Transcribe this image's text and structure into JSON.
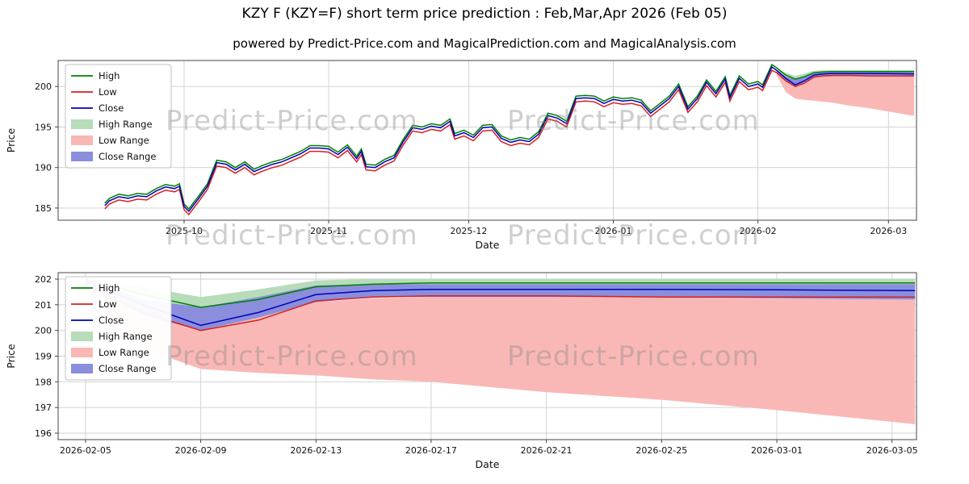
{
  "page": {
    "title": "KZY F (KZY=F) short term price prediction : Feb,Mar,Apr 2026 (Feb 05)",
    "subtitle": "powered by Predict-Price.com and MagicalPrediction.com and MagicalAnalysis.com",
    "watermark": "Predict-Price.com"
  },
  "colors": {
    "high": "#008000",
    "low": "#d62020",
    "close": "#0000b8",
    "high_range": "#b7dcb9",
    "low_range": "#f9b8b6",
    "close_range": "#8a8edd",
    "grid": "#cfcfcf",
    "frame": "#444444"
  },
  "chart_data": [
    {
      "type": "line",
      "title": "",
      "xlabel": "Date",
      "ylabel": "Price",
      "xlim": [
        0,
        184
      ],
      "ylim": [
        183.5,
        203.2
      ],
      "grid": true,
      "legend_position": "upper left",
      "x_ticks": [
        {
          "v": 27,
          "label": "2025-10"
        },
        {
          "v": 58,
          "label": "2025-11"
        },
        {
          "v": 88,
          "label": "2025-12"
        },
        {
          "v": 119,
          "label": "2026-01"
        },
        {
          "v": 150,
          "label": "2026-02"
        },
        {
          "v": 178,
          "label": "2026-03"
        }
      ],
      "y_ticks": [
        185,
        190,
        195,
        200
      ],
      "legend": [
        {
          "label": "High",
          "color": "high",
          "swatch": "line"
        },
        {
          "label": "Low",
          "color": "low",
          "swatch": "line"
        },
        {
          "label": "Close",
          "color": "close",
          "swatch": "line"
        },
        {
          "label": "High Range",
          "color": "high_range",
          "swatch": "patch"
        },
        {
          "label": "Low Range",
          "color": "low_range",
          "swatch": "patch"
        },
        {
          "label": "Close Range",
          "color": "close_range",
          "swatch": "patch"
        }
      ],
      "bands": [
        {
          "name": "Low Range",
          "color": "low_range",
          "x": [
            154,
            156,
            158,
            160,
            162,
            164,
            166,
            170,
            174,
            178,
            183.5
          ],
          "top": [
            201.7,
            200.7,
            200.0,
            200.5,
            201.1,
            201.25,
            201.3,
            201.3,
            201.3,
            201.25,
            201.2
          ],
          "bottom": [
            201.4,
            199.3,
            198.5,
            198.35,
            198.25,
            198.1,
            198.0,
            197.6,
            197.3,
            196.9,
            196.35
          ]
        },
        {
          "name": "High Range",
          "color": "high_range",
          "x": [
            154,
            156,
            158,
            160,
            162,
            164,
            166,
            170,
            174,
            178,
            183.5
          ],
          "top": [
            202.05,
            201.7,
            201.3,
            201.6,
            201.95,
            202.0,
            202.0,
            202.0,
            202.0,
            202.0,
            202.0
          ],
          "bottom": [
            201.95,
            201.1,
            200.6,
            201.0,
            201.6,
            201.75,
            201.8,
            201.8,
            201.8,
            201.8,
            201.8
          ]
        },
        {
          "name": "Close Range",
          "color": "close_range",
          "x": [
            154,
            156,
            158,
            160,
            162,
            164,
            166,
            170,
            174,
            178,
            183.5
          ],
          "top": [
            202.0,
            201.2,
            200.9,
            201.3,
            201.75,
            201.8,
            201.8,
            201.8,
            201.8,
            201.8,
            201.8
          ],
          "bottom": [
            201.7,
            200.6,
            200.0,
            200.5,
            201.1,
            201.3,
            201.3,
            201.3,
            201.3,
            201.25,
            201.2
          ]
        }
      ],
      "series": [
        {
          "name": "High",
          "color": "high",
          "x": [
            10,
            11,
            13,
            15,
            17,
            19,
            21,
            23,
            25,
            26,
            27,
            28,
            30,
            32,
            34,
            36,
            38,
            40,
            42,
            44,
            46,
            48,
            50,
            52,
            54,
            56,
            58,
            60,
            62,
            64,
            65,
            66,
            68,
            70,
            72,
            74,
            76,
            78,
            80,
            82,
            84,
            85,
            87,
            89,
            91,
            93,
            95,
            97,
            99,
            101,
            103,
            105,
            107,
            109,
            111,
            113,
            115,
            117,
            119,
            121,
            123,
            125,
            127,
            129,
            131,
            133,
            135,
            137,
            139,
            141,
            143,
            144,
            146,
            148,
            150,
            151,
            153,
            154,
            156,
            158,
            160,
            162,
            164,
            166,
            170,
            174,
            178,
            183.5
          ],
          "y": [
            185.6,
            186.2,
            186.7,
            186.5,
            186.8,
            186.7,
            187.4,
            187.9,
            187.7,
            188.0,
            185.5,
            184.9,
            186.4,
            188.0,
            190.9,
            190.7,
            190.0,
            190.7,
            189.8,
            190.3,
            190.7,
            191.0,
            191.5,
            192.0,
            192.7,
            192.7,
            192.6,
            191.9,
            192.8,
            191.4,
            192.3,
            190.4,
            190.3,
            191.0,
            191.5,
            193.5,
            195.2,
            195.0,
            195.4,
            195.2,
            196.0,
            194.2,
            194.6,
            194.0,
            195.2,
            195.3,
            193.9,
            193.4,
            193.7,
            193.5,
            194.4,
            196.7,
            196.4,
            195.7,
            198.8,
            198.9,
            198.8,
            198.2,
            198.7,
            198.5,
            198.6,
            198.3,
            197.0,
            197.9,
            198.8,
            200.3,
            197.5,
            198.8,
            200.8,
            199.4,
            201.2,
            198.9,
            201.3,
            200.3,
            200.6,
            200.2,
            202.7,
            202.3,
            201.4,
            200.9,
            201.2,
            201.7,
            201.8,
            201.85,
            201.85,
            201.85,
            201.85,
            201.85
          ]
        },
        {
          "name": "Low",
          "color": "low",
          "x": [
            10,
            11,
            13,
            15,
            17,
            19,
            21,
            23,
            25,
            26,
            27,
            28,
            30,
            32,
            34,
            36,
            38,
            40,
            42,
            44,
            46,
            48,
            50,
            52,
            54,
            56,
            58,
            60,
            62,
            64,
            65,
            66,
            68,
            70,
            72,
            74,
            76,
            78,
            80,
            82,
            84,
            85,
            87,
            89,
            91,
            93,
            95,
            97,
            99,
            101,
            103,
            105,
            107,
            109,
            111,
            113,
            115,
            117,
            119,
            121,
            123,
            125,
            127,
            129,
            131,
            133,
            135,
            137,
            139,
            141,
            143,
            144,
            146,
            148,
            150,
            151,
            153,
            154,
            156,
            158,
            160,
            162,
            164,
            166,
            170,
            174,
            178,
            183.5
          ],
          "y": [
            184.9,
            185.5,
            186.0,
            185.8,
            186.1,
            186.0,
            186.7,
            187.2,
            187.0,
            187.3,
            184.8,
            184.2,
            185.7,
            187.3,
            190.2,
            190.0,
            189.3,
            190.0,
            189.1,
            189.6,
            190.0,
            190.3,
            190.8,
            191.3,
            192.0,
            192.0,
            191.9,
            191.2,
            192.1,
            190.7,
            191.6,
            189.7,
            189.6,
            190.3,
            190.8,
            192.8,
            194.5,
            194.3,
            194.7,
            194.5,
            195.3,
            193.5,
            193.9,
            193.3,
            194.5,
            194.6,
            193.2,
            192.7,
            193.0,
            192.8,
            193.7,
            196.0,
            195.7,
            195.0,
            198.1,
            198.2,
            198.1,
            197.5,
            198.0,
            197.8,
            197.9,
            197.6,
            196.3,
            197.2,
            198.1,
            199.6,
            196.8,
            198.1,
            200.1,
            198.7,
            200.5,
            198.2,
            200.6,
            199.6,
            199.9,
            199.5,
            202.0,
            201.7,
            200.7,
            200.0,
            200.4,
            201.15,
            201.3,
            201.35,
            201.35,
            201.3,
            201.3,
            201.3
          ]
        },
        {
          "name": "Close",
          "color": "close",
          "x": [
            10,
            11,
            13,
            15,
            17,
            19,
            21,
            23,
            25,
            26,
            27,
            28,
            30,
            32,
            34,
            36,
            38,
            40,
            42,
            44,
            46,
            48,
            50,
            52,
            54,
            56,
            58,
            60,
            62,
            64,
            65,
            66,
            68,
            70,
            72,
            74,
            76,
            78,
            80,
            82,
            84,
            85,
            87,
            89,
            91,
            93,
            95,
            97,
            99,
            101,
            103,
            105,
            107,
            109,
            111,
            113,
            115,
            117,
            119,
            121,
            123,
            125,
            127,
            129,
            131,
            133,
            135,
            137,
            139,
            141,
            143,
            144,
            146,
            148,
            150,
            151,
            153,
            154,
            156,
            158,
            160,
            162,
            164,
            166,
            170,
            174,
            178,
            183.5
          ],
          "y": [
            185.3,
            185.9,
            186.4,
            186.2,
            186.5,
            186.4,
            187.1,
            187.6,
            187.4,
            187.7,
            185.2,
            184.6,
            186.1,
            187.7,
            190.6,
            190.4,
            189.7,
            190.4,
            189.5,
            190.0,
            190.4,
            190.7,
            191.2,
            191.7,
            192.4,
            192.4,
            192.3,
            191.6,
            192.5,
            191.1,
            192.0,
            190.1,
            190.0,
            190.7,
            191.2,
            193.2,
            194.9,
            194.7,
            195.1,
            194.9,
            195.7,
            193.9,
            194.3,
            193.7,
            194.9,
            195.0,
            193.6,
            193.1,
            193.4,
            193.2,
            194.1,
            196.4,
            196.1,
            195.4,
            198.5,
            198.6,
            198.5,
            197.9,
            198.4,
            198.2,
            198.3,
            198.0,
            196.7,
            197.6,
            198.5,
            200.0,
            197.2,
            198.5,
            200.5,
            199.1,
            200.9,
            198.6,
            201.0,
            200.0,
            200.3,
            199.9,
            202.4,
            202.0,
            201.0,
            200.2,
            200.7,
            201.4,
            201.55,
            201.6,
            201.6,
            201.6,
            201.58,
            201.55
          ]
        }
      ]
    },
    {
      "type": "line",
      "title": "",
      "xlabel": "Date",
      "ylabel": "Price",
      "xlim": [
        -0.95,
        28.85
      ],
      "ylim": [
        195.75,
        202.25
      ],
      "grid": true,
      "legend_position": "upper left",
      "x_ticks": [
        {
          "v": 0,
          "label": "2026-02-05"
        },
        {
          "v": 4,
          "label": "2026-02-09"
        },
        {
          "v": 8,
          "label": "2026-02-13"
        },
        {
          "v": 12,
          "label": "2026-02-17"
        },
        {
          "v": 16,
          "label": "2026-02-21"
        },
        {
          "v": 20,
          "label": "2026-02-25"
        },
        {
          "v": 24,
          "label": "2026-03-01"
        },
        {
          "v": 28,
          "label": "2026-03-05"
        }
      ],
      "y_ticks": [
        196,
        197,
        198,
        199,
        200,
        201,
        202
      ],
      "legend": [
        {
          "label": "High",
          "color": "high",
          "swatch": "line"
        },
        {
          "label": "Low",
          "color": "low",
          "swatch": "line"
        },
        {
          "label": "Close",
          "color": "close",
          "swatch": "line"
        },
        {
          "label": "High Range",
          "color": "high_range",
          "swatch": "patch"
        },
        {
          "label": "Low Range",
          "color": "low_range",
          "swatch": "patch"
        },
        {
          "label": "Close Range",
          "color": "close_range",
          "swatch": "patch"
        }
      ],
      "bands": [
        {
          "name": "Low Range",
          "color": "low_range",
          "x": [
            0,
            2,
            4,
            6,
            8,
            10,
            12,
            16,
            20,
            24,
            28.8
          ],
          "top": [
            201.7,
            200.7,
            200.0,
            200.5,
            201.1,
            201.25,
            201.3,
            201.3,
            201.3,
            201.25,
            201.2
          ],
          "bottom": [
            201.4,
            199.3,
            198.5,
            198.35,
            198.25,
            198.1,
            198.0,
            197.6,
            197.3,
            196.9,
            196.35
          ]
        },
        {
          "name": "High Range",
          "color": "high_range",
          "x": [
            0,
            2,
            4,
            6,
            8,
            10,
            12,
            16,
            20,
            24,
            28.8
          ],
          "top": [
            202.05,
            201.7,
            201.3,
            201.6,
            201.95,
            202.0,
            202.0,
            202.0,
            202.0,
            202.0,
            202.0
          ],
          "bottom": [
            201.95,
            201.1,
            200.6,
            201.0,
            201.6,
            201.75,
            201.8,
            201.8,
            201.8,
            201.8,
            201.8
          ]
        },
        {
          "name": "Close Range",
          "color": "close_range",
          "x": [
            0,
            2,
            4,
            6,
            8,
            10,
            12,
            16,
            20,
            24,
            28.8
          ],
          "top": [
            202.0,
            201.2,
            200.9,
            201.3,
            201.75,
            201.8,
            201.8,
            201.8,
            201.8,
            201.8,
            201.8
          ],
          "bottom": [
            201.7,
            200.6,
            200.0,
            200.5,
            201.1,
            201.3,
            201.3,
            201.3,
            201.3,
            201.25,
            201.2
          ]
        }
      ],
      "series": [
        {
          "name": "High",
          "color": "high",
          "x": [
            0,
            2,
            4,
            6,
            8,
            10,
            12,
            16,
            20,
            24,
            28.8
          ],
          "y": [
            202.0,
            201.4,
            200.9,
            201.2,
            201.7,
            201.8,
            201.85,
            201.85,
            201.85,
            201.85,
            201.85
          ]
        },
        {
          "name": "Low",
          "color": "low",
          "x": [
            0,
            2,
            4,
            6,
            8,
            10,
            12,
            16,
            20,
            24,
            28.8
          ],
          "y": [
            201.8,
            200.7,
            200.0,
            200.4,
            201.15,
            201.3,
            201.35,
            201.35,
            201.3,
            201.3,
            201.3
          ]
        },
        {
          "name": "Close",
          "color": "close",
          "x": [
            0,
            2,
            4,
            6,
            8,
            10,
            12,
            16,
            20,
            24,
            28.8
          ],
          "y": [
            201.9,
            201.0,
            200.2,
            200.7,
            201.4,
            201.55,
            201.6,
            201.6,
            201.6,
            201.58,
            201.55
          ]
        }
      ]
    }
  ]
}
